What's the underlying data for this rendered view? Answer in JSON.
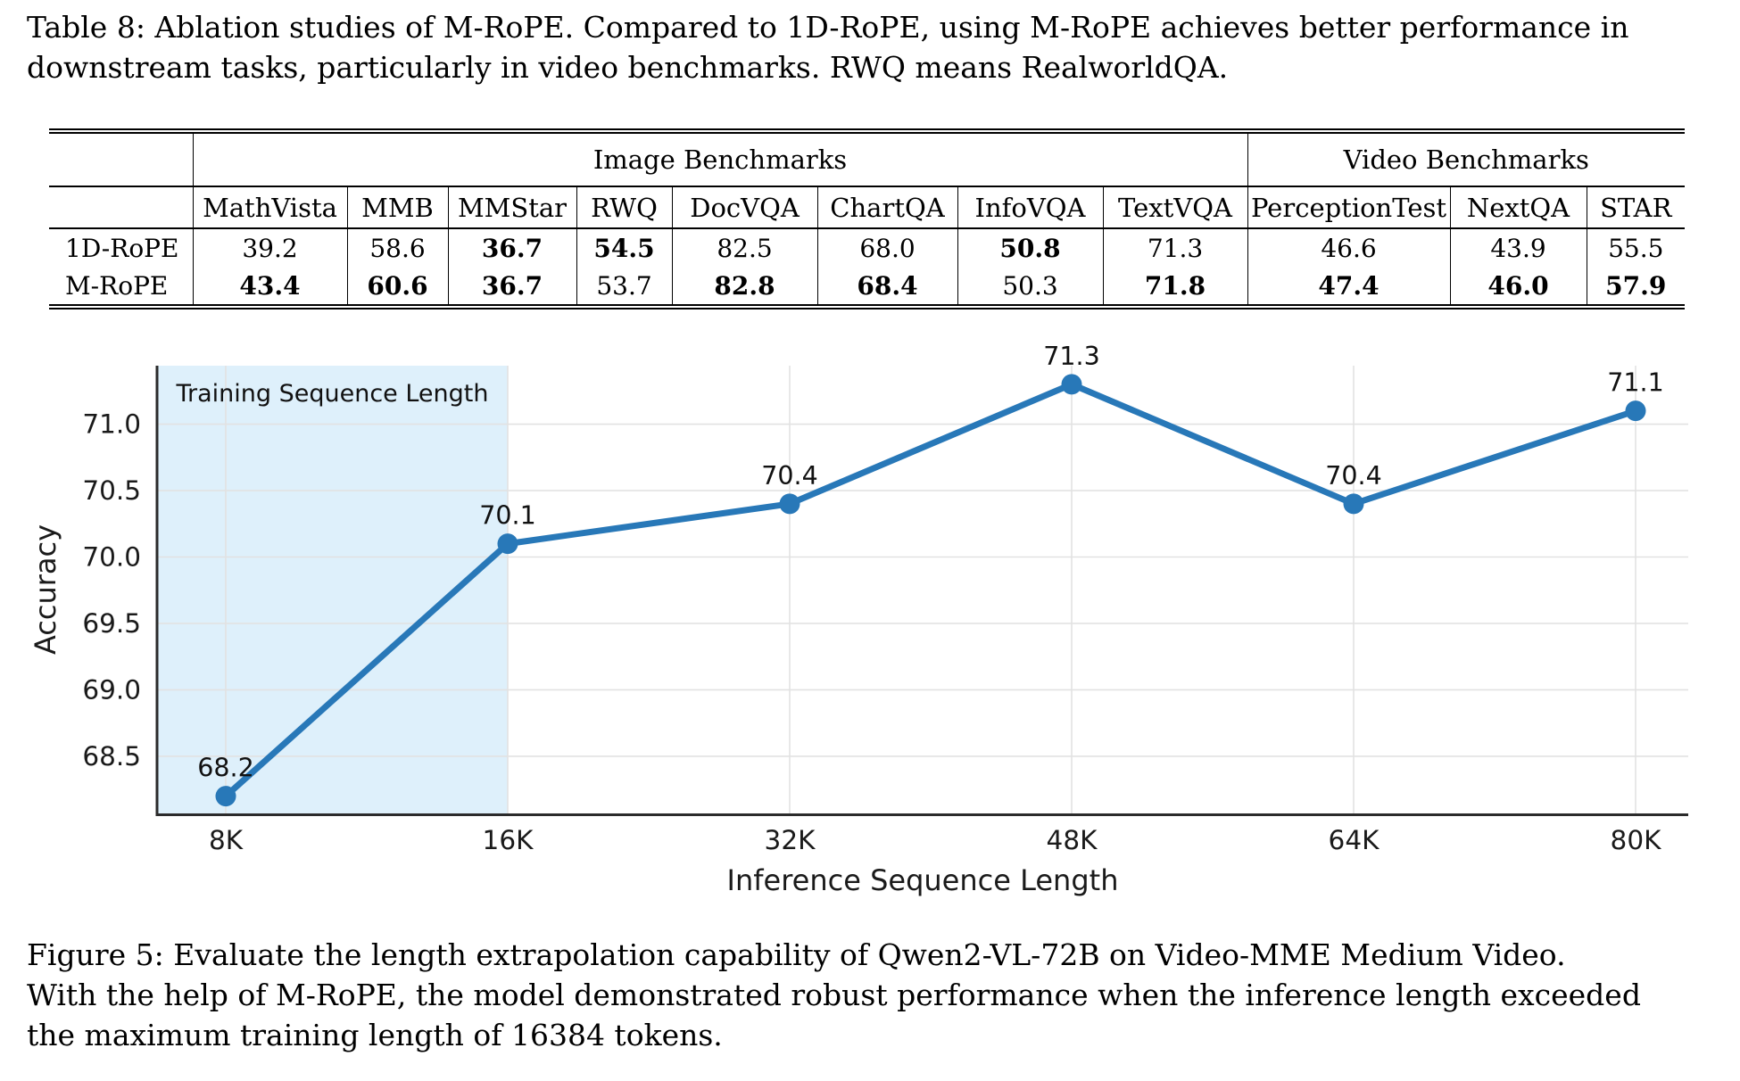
{
  "table_caption": {
    "lines": [
      "Table 8: Ablation studies of M-RoPE. Compared to 1D-RoPE, using M-RoPE achieves better performance in",
      "downstream tasks, particularly in video benchmarks. RWQ means RealworldQA."
    ]
  },
  "table": {
    "group_headers": [
      {
        "label": "Image Benchmarks",
        "span": 8
      },
      {
        "label": "Video Benchmarks",
        "span": 3
      }
    ],
    "columns": [
      "MathVista",
      "MMB",
      "MMStar",
      "RWQ",
      "DocVQA",
      "ChartQA",
      "InfoVQA",
      "TextVQA",
      "PerceptionTest",
      "NextQA",
      "STAR"
    ],
    "rows": [
      {
        "label": "1D-RoPE",
        "values": [
          "39.2",
          "58.6",
          "36.7",
          "54.5",
          "82.5",
          "68.0",
          "50.8",
          "71.3",
          "46.6",
          "43.9",
          "55.5"
        ],
        "bold": [
          false,
          false,
          true,
          true,
          false,
          false,
          true,
          false,
          false,
          false,
          false
        ]
      },
      {
        "label": "M-RoPE",
        "values": [
          "43.4",
          "60.6",
          "36.7",
          "53.7",
          "82.8",
          "68.4",
          "50.3",
          "71.8",
          "47.4",
          "46.0",
          "57.9"
        ],
        "bold": [
          true,
          true,
          true,
          false,
          true,
          true,
          false,
          true,
          true,
          true,
          true
        ]
      }
    ]
  },
  "chart_data": {
    "type": "line",
    "title": "",
    "x": [
      "8K",
      "16K",
      "32K",
      "48K",
      "64K",
      "80K"
    ],
    "series": [
      {
        "name": "Video-MME Medium Video accuracy",
        "values": [
          68.2,
          70.1,
          70.4,
          71.3,
          70.4,
          71.1
        ]
      }
    ],
    "point_labels": [
      "68.2",
      "70.1",
      "70.4",
      "71.3",
      "70.4",
      "71.1"
    ],
    "xlabel": "Inference Sequence Length",
    "ylabel": "Accuracy",
    "yticks": [
      {
        "label": "71.0",
        "value": 71.0
      },
      {
        "label": "70.5",
        "value": 70.5
      },
      {
        "label": "70.0",
        "value": 70.0
      },
      {
        "label": "69.5",
        "value": 69.5
      },
      {
        "label": "69.0",
        "value": 69.0
      },
      {
        "label": "68.5",
        "value": 68.5
      }
    ],
    "ylim": [
      68.07,
      71.44
    ],
    "grid": true,
    "legend": "none",
    "shaded_region": {
      "label": "Training Sequence Length",
      "from_x": "axis-start",
      "to_x": "16K"
    },
    "colors": {
      "line": "#2878b8",
      "shade": "#def0fb",
      "grid": "#e2e2e2",
      "axis": "#2b2b2b",
      "tick_text": "#1a1a1a"
    }
  },
  "figure_caption": {
    "lines": [
      "Figure 5: Evaluate the length extrapolation capability of Qwen2-VL-72B on Video-MME Medium Video.",
      "With the help of M-RoPE, the model demonstrated robust performance when the inference length exceeded",
      "the maximum training length of 16384 tokens."
    ]
  }
}
